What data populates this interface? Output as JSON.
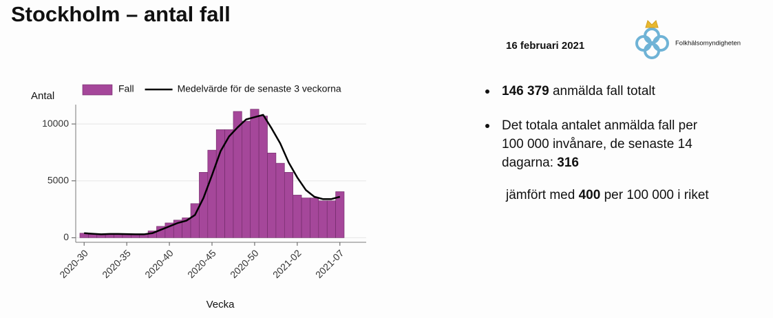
{
  "slide": {
    "title": "Stockholm – antal fall",
    "date": "16 februari 2021",
    "logo_text": "Folkhälsomyndigheten",
    "facts": [
      {
        "bold": "146 379",
        "text": "anmälda fall totalt"
      },
      {
        "lines": [
          "Det totala antalet anmälda fall per",
          "100 000 invånare, de senaste 14",
          "dagarna:"
        ],
        "bold": "316"
      },
      {
        "text_before": "jämfört med",
        "bold": "400",
        "text_after": "per 100 000 i riket"
      }
    ]
  },
  "chart_data": {
    "type": "bar",
    "y_label": "Antal",
    "x_label": "Vecka",
    "categories": [
      "2020-30",
      null,
      null,
      null,
      null,
      "2020-35",
      null,
      null,
      null,
      null,
      "2020-40",
      null,
      null,
      null,
      null,
      "2020-45",
      null,
      null,
      null,
      null,
      "2020-50",
      null,
      null,
      null,
      null,
      "2021-02",
      null,
      null,
      null,
      null,
      "2021-07"
    ],
    "series": [
      {
        "name": "Fall",
        "type": "bar",
        "color": "#a5479a",
        "values": [
          400,
          300,
          300,
          300,
          350,
          350,
          300,
          300,
          600,
          1000,
          1300,
          1550,
          1750,
          3000,
          5750,
          7700,
          9500,
          9500,
          11100,
          10250,
          11300,
          10700,
          7450,
          6550,
          5750,
          3750,
          3500,
          3500,
          3250,
          3250,
          4050
        ]
      },
      {
        "name": "Medelvärde för de senaste 3 veckorna",
        "type": "line",
        "color": "#000000",
        "values": [
          400,
          350,
          300,
          330,
          330,
          320,
          300,
          300,
          400,
          700,
          1000,
          1300,
          1500,
          2000,
          3500,
          5500,
          7600,
          8900,
          9700,
          10400,
          10600,
          10800,
          9600,
          8300,
          6600,
          5300,
          4200,
          3600,
          3400,
          3400,
          3600
        ]
      }
    ],
    "ylim": [
      -400,
      11700
    ],
    "yticks": [
      0,
      5000,
      10000
    ],
    "grid": true,
    "legend": "top"
  }
}
